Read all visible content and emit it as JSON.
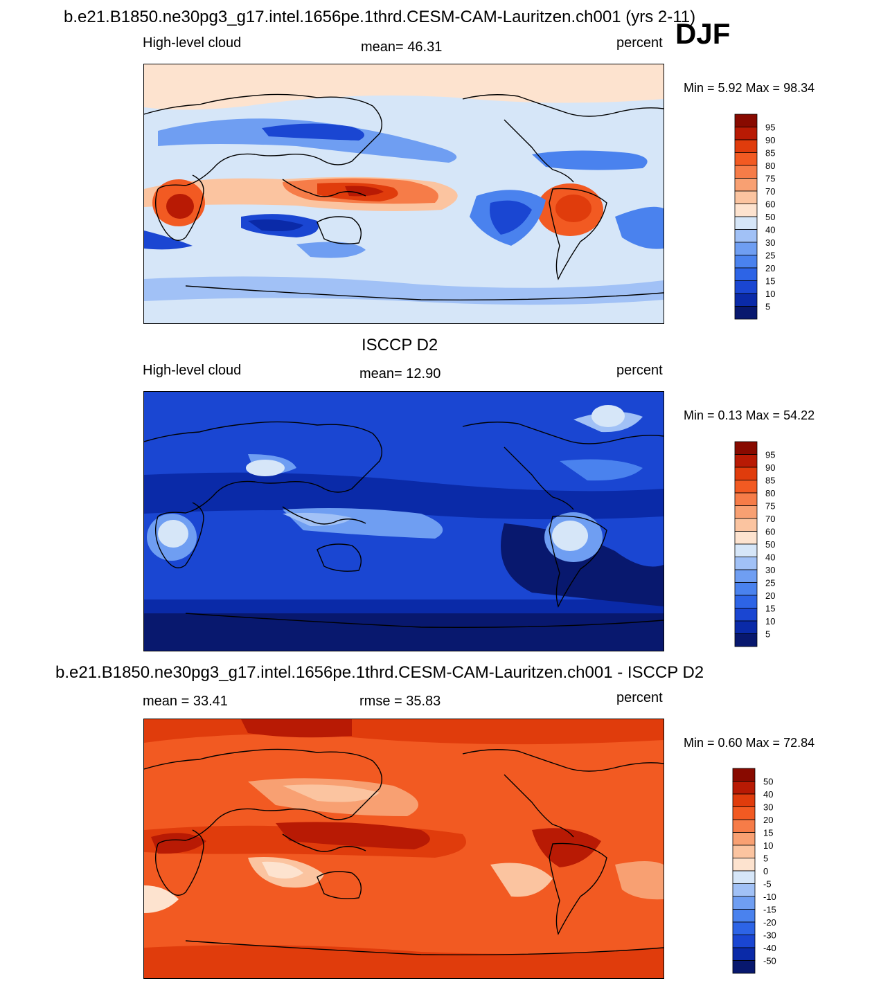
{
  "main_title": "b.e21.B1850.ne30pg3_g17.intel.1656pe.1thrd.CESM-CAM-Lauritzen.ch001 (yrs 2-11)",
  "season": "DJF",
  "panels": [
    {
      "heading": "",
      "left_label": "High-level cloud",
      "center_label": "mean=  46.31",
      "units": "percent",
      "minmax": "Min =    5.92 Max =   98.34",
      "colorbar_labels": [
        "95",
        "90",
        "85",
        "80",
        "75",
        "70",
        "60",
        "50",
        "40",
        "30",
        "25",
        "20",
        "15",
        "10",
        "5"
      ]
    },
    {
      "heading": "ISCCP D2",
      "left_label": "High-level cloud",
      "center_label": "mean=  12.90",
      "units": "percent",
      "minmax": "Min =   0.13 Max =   54.22",
      "colorbar_labels": [
        "95",
        "90",
        "85",
        "80",
        "75",
        "70",
        "60",
        "50",
        "40",
        "30",
        "25",
        "20",
        "15",
        "10",
        "5"
      ]
    },
    {
      "heading": "b.e21.B1850.ne30pg3_g17.intel.1656pe.1thrd.CESM-CAM-Lauritzen.ch001 - ISCCP D2",
      "left_label": "mean =   33.41",
      "center_label": "rmse =   35.83",
      "units": "percent",
      "minmax": "Min =   0.60 Max =   72.84",
      "colorbar_labels": [
        "50",
        "40",
        "30",
        "20",
        "15",
        "10",
        "5",
        "0",
        "-5",
        "-10",
        "-15",
        "-20",
        "-30",
        "-40",
        "-50"
      ]
    }
  ],
  "colors": {
    "scale": [
      "#08186e",
      "#0a2aa8",
      "#1a46d2",
      "#2d64e6",
      "#4a82ee",
      "#6f9ef2",
      "#a1c1f6",
      "#d6e6f8",
      "#fde3cf",
      "#fbc4a0",
      "#f8a072",
      "#f67c48",
      "#f25a22",
      "#e03c0c",
      "#b81a04",
      "#880a00"
    ],
    "coast": "#000000"
  }
}
